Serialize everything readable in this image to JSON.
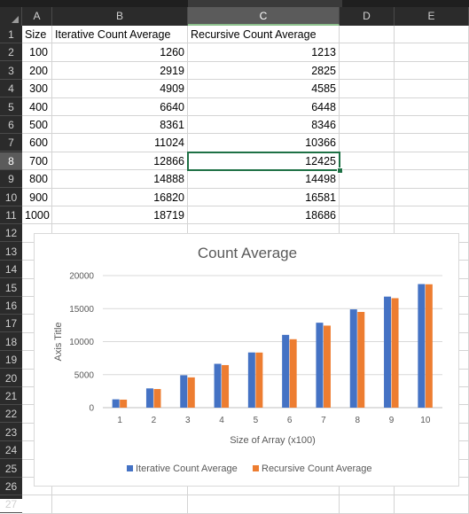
{
  "columns": [
    "A",
    "B",
    "C",
    "D",
    "E"
  ],
  "selected_column": "C",
  "rows": [
    "1",
    "2",
    "3",
    "4",
    "5",
    "6",
    "7",
    "8",
    "9",
    "10",
    "11",
    "12",
    "13",
    "14",
    "15",
    "16",
    "17",
    "18",
    "19",
    "20",
    "21",
    "22",
    "23",
    "24",
    "25",
    "26",
    "27"
  ],
  "selected_row": "8",
  "headers": [
    "Size",
    "Iterative Count Average",
    "Recursive Count Average"
  ],
  "table": [
    [
      "100",
      "1260",
      "1213"
    ],
    [
      "200",
      "2919",
      "2825"
    ],
    [
      "300",
      "4909",
      "4585"
    ],
    [
      "400",
      "6640",
      "6448"
    ],
    [
      "500",
      "8361",
      "8346"
    ],
    [
      "600",
      "11024",
      "10366"
    ],
    [
      "700",
      "12866",
      "12425"
    ],
    [
      "800",
      "14888",
      "14498"
    ],
    [
      "900",
      "16820",
      "16581"
    ],
    [
      "1000",
      "18719",
      "18686"
    ]
  ],
  "chart_data": {
    "type": "bar",
    "title": "Count Average",
    "xlabel": "Size of Array (x100)",
    "ylabel": "Axis Title",
    "categories": [
      "1",
      "2",
      "3",
      "4",
      "5",
      "6",
      "7",
      "8",
      "9",
      "10"
    ],
    "ylim": [
      0,
      20000
    ],
    "yticks": [
      "0",
      "5000",
      "10000",
      "15000",
      "20000"
    ],
    "grid": true,
    "legend": "bottom",
    "series": [
      {
        "name": "Iterative Count Average",
        "color": "#4472c4",
        "values": [
          1260,
          2919,
          4909,
          6640,
          8361,
          11024,
          12866,
          14888,
          16820,
          18719
        ]
      },
      {
        "name": "Recursive Count Average",
        "color": "#ed7d31",
        "values": [
          1213,
          2825,
          4585,
          6448,
          8346,
          10366,
          12425,
          14498,
          16581,
          18686
        ]
      }
    ]
  }
}
